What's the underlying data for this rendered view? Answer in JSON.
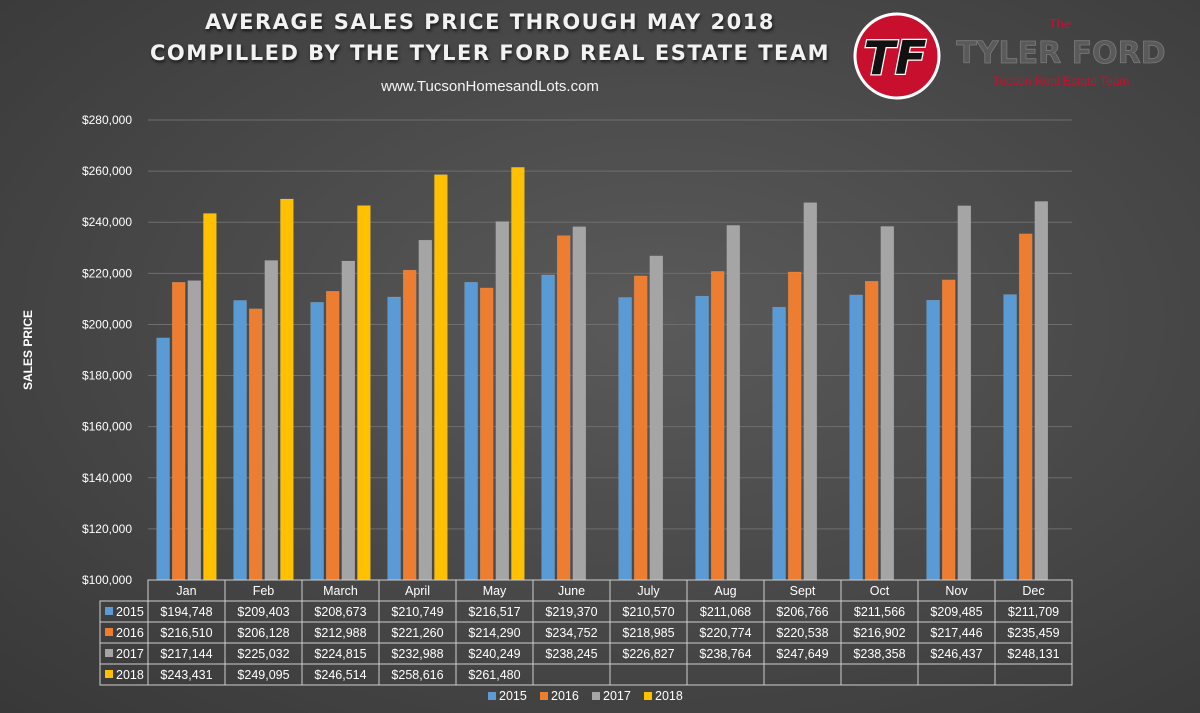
{
  "header": {
    "title_line1": "AVERAGE SALES PRICE THROUGH MAY 2018",
    "title_line2": "COMPILLED BY THE TYLER FORD REAL ESTATE TEAM",
    "url": "www.TucsonHomesandLots.com"
  },
  "logo": {
    "monogram": "TF",
    "the": "The",
    "name": "TYLER FORD",
    "tagline": "Tucson Real Estate Team"
  },
  "chart_data": {
    "type": "bar",
    "ylabel": "SALES PRICE",
    "ylim": [
      100000,
      280000
    ],
    "yticks": [
      100000,
      120000,
      140000,
      160000,
      180000,
      200000,
      220000,
      240000,
      260000,
      280000
    ],
    "ytick_labels": [
      "$100,000",
      "$120,000",
      "$140,000",
      "$160,000",
      "$180,000",
      "$200,000",
      "$220,000",
      "$240,000",
      "$260,000",
      "$280,000"
    ],
    "grid": true,
    "legend": "bottom",
    "categories": [
      "Jan",
      "Feb",
      "March",
      "April",
      "May",
      "June",
      "July",
      "Aug",
      "Sept",
      "Oct",
      "Nov",
      "Dec"
    ],
    "series": [
      {
        "name": "2015",
        "color": "#5b9bd5",
        "values": [
          194748,
          209403,
          208673,
          210749,
          216517,
          219370,
          210570,
          211068,
          206766,
          211566,
          209485,
          211709
        ],
        "labels": [
          "$194,748",
          "$209,403",
          "$208,673",
          "$210,749",
          "$216,517",
          "$219,370",
          "$210,570",
          "$211,068",
          "$206,766",
          "$211,566",
          "$209,485",
          "$211,709"
        ]
      },
      {
        "name": "2016",
        "color": "#ed7d31",
        "values": [
          216510,
          206128,
          212988,
          221260,
          214290,
          234752,
          218985,
          220774,
          220538,
          216902,
          217446,
          235459
        ],
        "labels": [
          "$216,510",
          "$206,128",
          "$212,988",
          "$221,260",
          "$214,290",
          "$234,752",
          "$218,985",
          "$220,774",
          "$220,538",
          "$216,902",
          "$217,446",
          "$235,459"
        ]
      },
      {
        "name": "2017",
        "color": "#a5a5a5",
        "values": [
          217144,
          225032,
          224815,
          232988,
          240249,
          238245,
          226827,
          238764,
          247649,
          238358,
          246437,
          248131
        ],
        "labels": [
          "$217,144",
          "$225,032",
          "$224,815",
          "$232,988",
          "$240,249",
          "$238,245",
          "$226,827",
          "$238,764",
          "$247,649",
          "$238,358",
          "$246,437",
          "$248,131"
        ]
      },
      {
        "name": "2018",
        "color": "#ffc000",
        "values": [
          243431,
          249095,
          246514,
          258616,
          261480,
          null,
          null,
          null,
          null,
          null,
          null,
          null
        ],
        "labels": [
          "$243,431",
          "$249,095",
          "$246,514",
          "$258,616",
          "$261,480",
          "",
          "",
          "",
          "",
          "",
          "",
          ""
        ]
      }
    ]
  }
}
